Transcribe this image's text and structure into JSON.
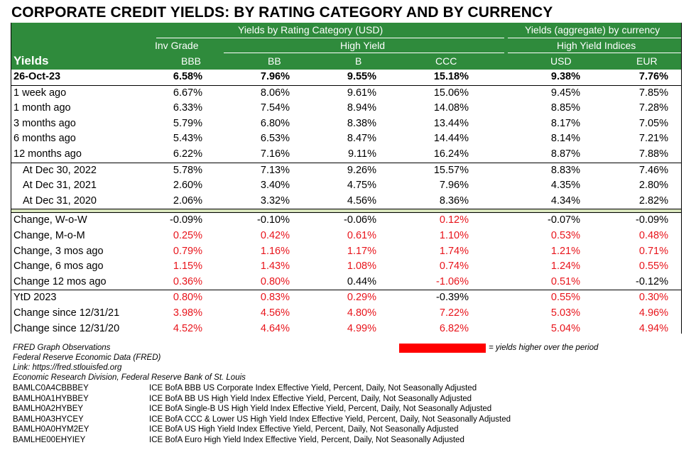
{
  "title": "CORPORATE CREDIT YIELDS: BY RATING CATEGORY AND BY CURRENCY",
  "header": {
    "group_usd": "Yields by Rating Category (USD)",
    "group_ccy": "Yields (aggregate) by currency",
    "inv_grade": "Inv Grade",
    "high_yield": "High Yield",
    "hy_indices": "High Yield Indices",
    "row_label": "Yields",
    "cols": [
      "BBB",
      "BB",
      "B",
      "CCC",
      "USD",
      "EUR"
    ]
  },
  "rows": [
    {
      "label": "26-Oct-23",
      "values": [
        "6.58%",
        "7.96%",
        "9.55%",
        "15.18%",
        "9.38%",
        "7.76%"
      ],
      "bold": true
    },
    {
      "label": "1 week ago",
      "values": [
        "6.67%",
        "8.06%",
        "9.61%",
        "15.06%",
        "9.45%",
        "7.85%"
      ]
    },
    {
      "label": "1 month ago",
      "values": [
        "6.33%",
        "7.54%",
        "8.94%",
        "14.08%",
        "8.85%",
        "7.28%"
      ]
    },
    {
      "label": "3 months ago",
      "values": [
        "5.79%",
        "6.80%",
        "8.38%",
        "13.44%",
        "8.17%",
        "7.05%"
      ]
    },
    {
      "label": "6 months ago",
      "values": [
        "5.43%",
        "6.53%",
        "8.47%",
        "14.44%",
        "8.14%",
        "7.21%"
      ]
    },
    {
      "label": "12 months ago",
      "values": [
        "6.22%",
        "7.16%",
        "9.11%",
        "16.24%",
        "8.87%",
        "7.88%"
      ]
    },
    {
      "label": "At Dec 30, 2022",
      "values": [
        "5.78%",
        "7.13%",
        "9.26%",
        "15.57%",
        "8.83%",
        "7.46%"
      ],
      "indent": true
    },
    {
      "label": "At Dec 31, 2021",
      "values": [
        "2.60%",
        "3.40%",
        "4.75%",
        "7.96%",
        "4.35%",
        "2.80%"
      ],
      "indent": true
    },
    {
      "label": "At Dec 31, 2020",
      "values": [
        "2.06%",
        "3.32%",
        "4.56%",
        "8.36%",
        "4.34%",
        "2.82%"
      ],
      "indent": true
    },
    {
      "label": "Change, W-o-W",
      "values": [
        "-0.09%",
        "-0.10%",
        "-0.06%",
        "0.12%",
        "-0.07%",
        "-0.09%"
      ]
    },
    {
      "label": "Change, M-o-M",
      "values": [
        "0.25%",
        "0.42%",
        "0.61%",
        "1.10%",
        "0.53%",
        "0.48%"
      ]
    },
    {
      "label": "Change, 3 mos ago",
      "values": [
        "0.79%",
        "1.16%",
        "1.17%",
        "1.74%",
        "1.21%",
        "0.71%"
      ]
    },
    {
      "label": "Change, 6 mos ago",
      "values": [
        "1.15%",
        "1.43%",
        "1.08%",
        "0.74%",
        "1.24%",
        "0.55%"
      ]
    },
    {
      "label": "Change 12 mos ago",
      "values": [
        "0.36%",
        "0.80%",
        "0.44%",
        "-1.06%",
        "0.51%",
        "-0.12%"
      ]
    },
    {
      "label": "YtD 2023",
      "values": [
        "0.80%",
        "0.83%",
        "0.29%",
        "-0.39%",
        "0.55%",
        "0.30%"
      ]
    },
    {
      "label": "Change since 12/31/21",
      "values": [
        "3.98%",
        "4.56%",
        "4.80%",
        "7.22%",
        "5.03%",
        "4.96%"
      ]
    },
    {
      "label": "Change since 12/31/20",
      "values": [
        "4.52%",
        "4.64%",
        "4.99%",
        "6.82%",
        "5.04%",
        "4.94%"
      ]
    }
  ],
  "colors": {
    "header_bg": "#2f8b3c",
    "increase": "#e8141b",
    "separator": "#d8e4bc"
  },
  "footer": {
    "source_lines": [
      "FRED Graph Observations",
      "Federal Reserve Economic Data (FRED)",
      "Link: https://fred.stlouisfed.org",
      "Economic Research Division, Federal Reserve Bank of St. Louis"
    ],
    "legend": "= yields higher over the period",
    "series": [
      {
        "code": "BAMLC0A4CBBBEY",
        "desc": "ICE BofA BBB US Corporate Index Effective Yield, Percent, Daily, Not Seasonally Adjusted"
      },
      {
        "code": "BAMLH0A1HYBBEY",
        "desc": "ICE BofA BB US High Yield Index Effective Yield, Percent, Daily, Not Seasonally Adjusted"
      },
      {
        "code": "BAMLH0A2HYBEY",
        "desc": "ICE BofA Single-B US High Yield Index Effective Yield, Percent, Daily, Not Seasonally Adjusted"
      },
      {
        "code": "BAMLH0A3HYCEY",
        "desc": "ICE BofA CCC & Lower US High Yield Index Effective Yield, Percent, Daily, Not Seasonally Adjusted"
      },
      {
        "code": "BAMLH0A0HYM2EY",
        "desc": "ICE BofA US High Yield Index Effective Yield, Percent, Daily, Not Seasonally Adjusted"
      },
      {
        "code": "BAMLHE00EHYIEY",
        "desc": "ICE BofA Euro High Yield Index Effective Yield, Percent, Daily, Not Seasonally Adjusted"
      }
    ]
  }
}
